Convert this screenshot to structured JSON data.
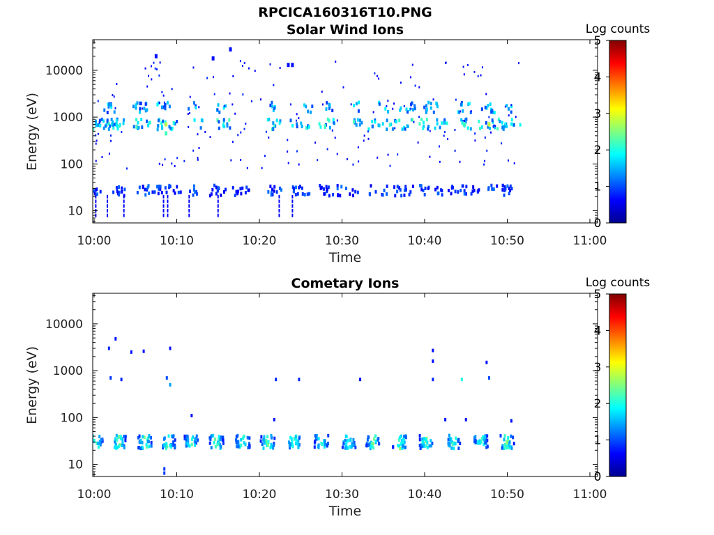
{
  "figure": {
    "title": "RPCICA160316T10.PNG"
  },
  "chart_data": [
    {
      "type": "heatmap",
      "title": "Solar Wind Ions",
      "xlabel": "Time",
      "ylabel": "Energy (eV)",
      "x_ticks": [
        "10:00",
        "10:10",
        "10:20",
        "10:30",
        "10:40",
        "10:50",
        "11:00"
      ],
      "x_range_minutes": [
        0,
        60
      ],
      "y_ticks": [
        "10",
        "100",
        "1000",
        "10000"
      ],
      "y_scale": "log",
      "y_range": [
        5.5,
        45000
      ],
      "colorbar": {
        "label": "Log counts",
        "ticks": [
          "0",
          "1",
          "2",
          "3",
          "4",
          "5"
        ],
        "range": [
          0,
          5
        ]
      },
      "bands": [
        {
          "energy": 27,
          "log_counts": 1.0,
          "minutes": [
            0.2,
            2.5,
            3.2,
            5.8,
            6.5,
            7.8,
            8.2,
            9.2,
            10,
            12,
            14.5,
            15.5,
            17.2,
            18.2,
            21.5,
            22.2,
            24.5,
            25.5,
            27.8,
            28.4,
            30,
            31.4,
            33.8,
            35,
            36.8,
            38,
            40,
            41.8,
            43.5,
            44.5,
            46,
            47.8,
            49.2,
            50.2
          ]
        },
        {
          "energy": 700,
          "log_counts": 1.9,
          "minutes": [
            0.3,
            1.2,
            1.9,
            2.5,
            3.1,
            5.3,
            6.2,
            8,
            8.9,
            9.8,
            12.5,
            15.5,
            16,
            21.5,
            22.2,
            24.2,
            25.5,
            27.8,
            28.5,
            32,
            33.5,
            35,
            36,
            37,
            38,
            40,
            41.5,
            42.5,
            44.5,
            45,
            47,
            48,
            49,
            50,
            51
          ]
        },
        {
          "energy": 1600,
          "log_counts": 1.6,
          "minutes": [
            1.5,
            2.2,
            5,
            5.8,
            8.2,
            8.8,
            12,
            15.5,
            21.8,
            25.8,
            28.5,
            32,
            35,
            37.5,
            38.5,
            40.5,
            41.2,
            44.5,
            45,
            47.5,
            48,
            50
          ]
        }
      ],
      "spots": [
        {
          "minute": 8.7,
          "energy": 700,
          "log_counts": 2.8
        },
        {
          "minute": 47.8,
          "energy": 700,
          "log_counts": 2.8
        },
        {
          "minute": 8.7,
          "energy": 450,
          "log_counts": 2.2
        },
        {
          "minute": 44.8,
          "energy": 700,
          "log_counts": 2.2
        },
        {
          "minute": 7.5,
          "energy": 20000,
          "log_counts": 0.7
        },
        {
          "minute": 16.5,
          "energy": 28000,
          "log_counts": 0.7
        },
        {
          "minute": 14.4,
          "energy": 18000,
          "log_counts": 0.7
        },
        {
          "minute": 23.5,
          "energy": 13000,
          "log_counts": 0.7
        },
        {
          "minute": 24,
          "energy": 13000,
          "log_counts": 0.7
        }
      ]
    },
    {
      "type": "heatmap",
      "title": "Cometary Ions",
      "xlabel": "Time",
      "ylabel": "Energy (eV)",
      "x_ticks": [
        "10:00",
        "10:10",
        "10:20",
        "10:30",
        "10:40",
        "10:50",
        "11:00"
      ],
      "x_range_minutes": [
        0,
        60
      ],
      "y_ticks": [
        "10",
        "100",
        "1000",
        "10000"
      ],
      "y_scale": "log",
      "y_range": [
        5.5,
        45000
      ],
      "colorbar": {
        "label": "Log counts",
        "ticks": [
          "0",
          "1",
          "2",
          "3",
          "4",
          "5"
        ],
        "range": [
          0,
          5
        ]
      },
      "band_minutes": [
        0.2,
        3.0,
        6.2,
        9.0,
        11.8,
        14.8,
        18.0,
        21.0,
        24.2,
        27.5,
        30.8,
        33.8,
        37.0,
        40.2,
        43.5,
        46.8,
        50.0
      ],
      "band_energy": 30,
      "band_log_counts": 2.1,
      "spots": [
        {
          "minute": 1.8,
          "energy": 3000,
          "log_counts": 0.8
        },
        {
          "minute": 2.6,
          "energy": 4800,
          "log_counts": 0.7
        },
        {
          "minute": 4.5,
          "energy": 2500,
          "log_counts": 0.7
        },
        {
          "minute": 6,
          "energy": 2600,
          "log_counts": 0.7
        },
        {
          "minute": 9.2,
          "energy": 3000,
          "log_counts": 0.7
        },
        {
          "minute": 2,
          "energy": 700,
          "log_counts": 0.9
        },
        {
          "minute": 3.3,
          "energy": 650,
          "log_counts": 0.8
        },
        {
          "minute": 8.8,
          "energy": 700,
          "log_counts": 1.0
        },
        {
          "minute": 9.2,
          "energy": 500,
          "log_counts": 1.4
        },
        {
          "minute": 22,
          "energy": 650,
          "log_counts": 0.8
        },
        {
          "minute": 24.8,
          "energy": 650,
          "log_counts": 0.8
        },
        {
          "minute": 32.2,
          "energy": 650,
          "log_counts": 0.7
        },
        {
          "minute": 41,
          "energy": 2700,
          "log_counts": 0.7
        },
        {
          "minute": 41,
          "energy": 1600,
          "log_counts": 0.7
        },
        {
          "minute": 41,
          "energy": 650,
          "log_counts": 0.8
        },
        {
          "minute": 44.5,
          "energy": 650,
          "log_counts": 2.0
        },
        {
          "minute": 47.5,
          "energy": 1500,
          "log_counts": 0.7
        },
        {
          "minute": 47.8,
          "energy": 700,
          "log_counts": 1.0
        },
        {
          "minute": 11.8,
          "energy": 110,
          "log_counts": 0.7
        },
        {
          "minute": 21.8,
          "energy": 90,
          "log_counts": 0.7
        },
        {
          "minute": 42.5,
          "energy": 90,
          "log_counts": 0.7
        },
        {
          "minute": 45,
          "energy": 90,
          "log_counts": 0.7
        },
        {
          "minute": 50.5,
          "energy": 85,
          "log_counts": 0.7
        },
        {
          "minute": 8.5,
          "energy": 8,
          "log_counts": 0.9
        },
        {
          "minute": 8.5,
          "energy": 6.5,
          "log_counts": 0.9
        }
      ]
    }
  ]
}
